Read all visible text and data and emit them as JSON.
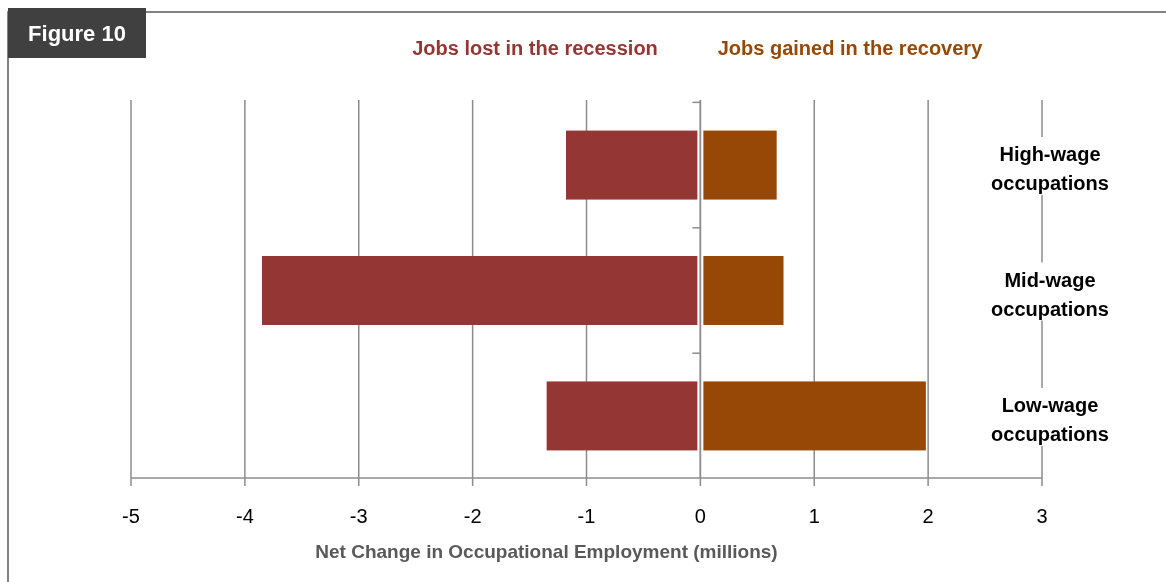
{
  "chart_data": {
    "type": "bar",
    "orientation": "horizontal",
    "title": "Figure 10",
    "xlabel": "Net Change in Occupational Employment (millions)",
    "categories": [
      "High-wage occupations",
      "Mid-wage occupations",
      "Low-wage occupations"
    ],
    "series": [
      {
        "name": "Jobs lost in the recession",
        "color": "#943634",
        "values": [
          -1.18,
          -3.85,
          -1.35
        ]
      },
      {
        "name": "Jobs gained in the recovery",
        "color": "#974806",
        "values": [
          0.67,
          0.73,
          1.98
        ]
      }
    ],
    "xlim": [
      -5,
      3
    ],
    "xticks": [
      -5,
      -4,
      -3,
      -2,
      -1,
      0,
      1,
      2,
      3
    ],
    "grid": "x",
    "legend": "top",
    "stacked": true
  }
}
